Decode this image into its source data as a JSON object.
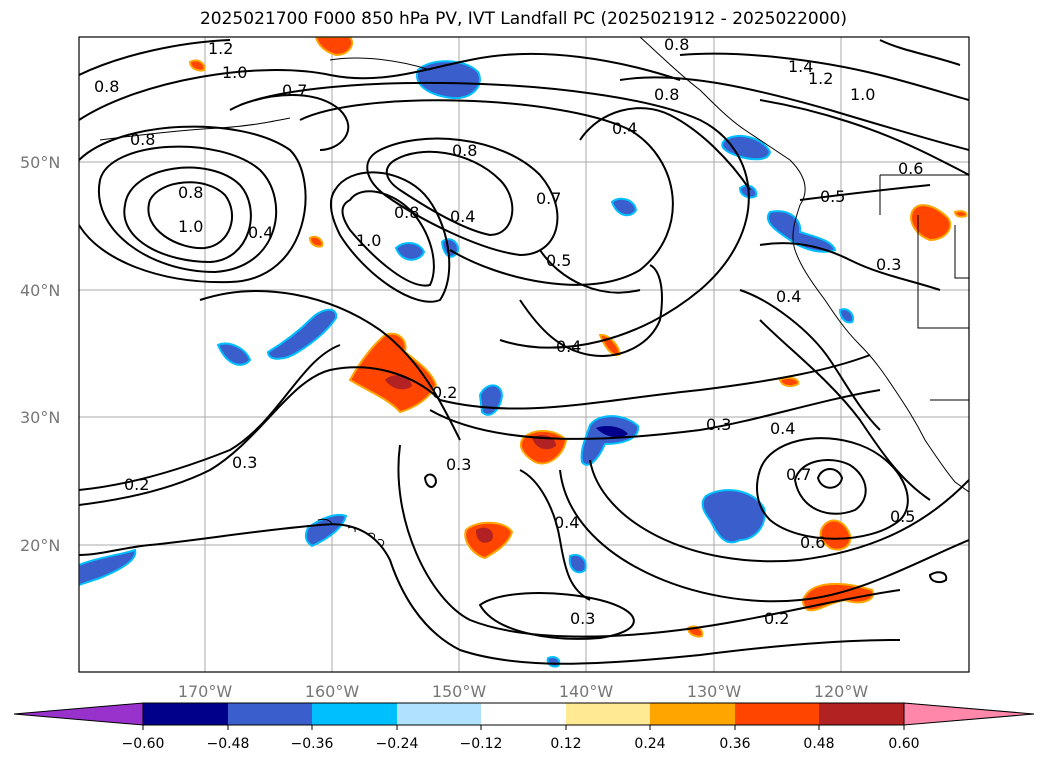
{
  "title": "2025021700 F000 850 hPa PV, IVT Landfall PC (2025021912 - 2025022000)",
  "map": {
    "lat_labels": [
      "50°N",
      "40°N",
      "30°N",
      "20°N"
    ],
    "lon_labels": [
      "170°W",
      "160°W",
      "150°W",
      "140°W",
      "130°W",
      "120°W"
    ],
    "contour_labels": [
      "1.2",
      "1.0",
      "0.8",
      "0.7",
      "0.8",
      "0.8",
      "1.0",
      "0.4",
      "0.8",
      "0.8",
      "0.4",
      "1.0",
      "0.7",
      "0.5",
      "0.4",
      "0.4",
      "0.3",
      "0.2",
      "0.3",
      "0.2",
      "0.3",
      "0.4",
      "0.7",
      "0.6",
      "0.5",
      "0.3",
      "0.2",
      "0.4",
      "0.5",
      "0.8",
      "1.4",
      "1.2",
      "1.0",
      "0.6",
      "0.3",
      "0.4",
      "0.8"
    ],
    "pv_contour_color": "#000000"
  },
  "colorbar": {
    "tick_labels": [
      "−0.60",
      "−0.48",
      "−0.36",
      "−0.24",
      "−0.12",
      "0.12",
      "0.24",
      "0.36",
      "0.48",
      "0.60"
    ],
    "colors": [
      "#9932cc",
      "#00008b",
      "#3a5fcd",
      "#00bfff",
      "#b0e2ff",
      "#ffffff",
      "#ffe993",
      "#ffa500",
      "#ff4500",
      "#b22222",
      "#ff88aa"
    ]
  }
}
